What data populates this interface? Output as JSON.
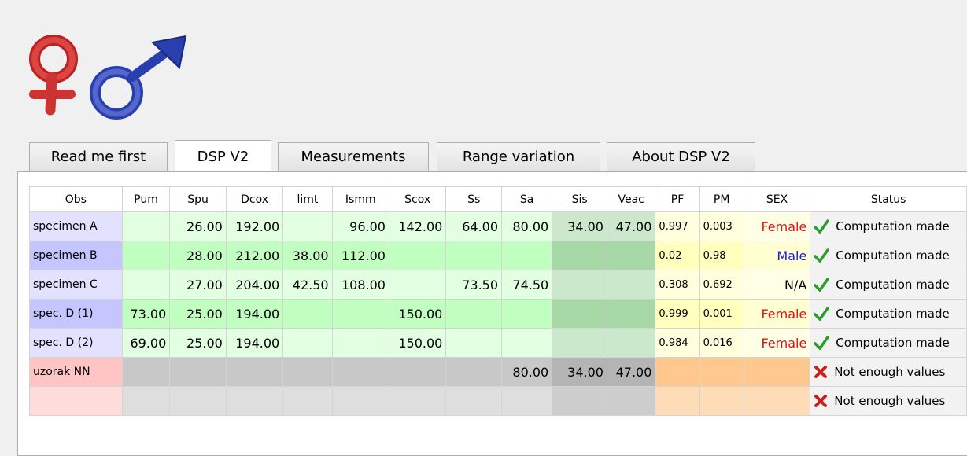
{
  "tabs": [
    "Read me first",
    "DSP V2",
    "Measurements",
    "Range variation",
    "About DSP V2"
  ],
  "table": {
    "header": [
      "Obs",
      "Pum",
      "Spu",
      "Dcox",
      "limt",
      "Ismm",
      "Scox",
      "Ss",
      "Sa",
      "Sis",
      "Veac",
      "PF",
      "PM",
      "SEX",
      "Status"
    ],
    "rows": [
      [
        "specimen A",
        null,
        "26.00",
        "192.00",
        null,
        "96.00",
        "142.00",
        "64.00",
        "80.00",
        "34.00",
        "47.00",
        "0.997",
        "0.003",
        "Female",
        "Computation made"
      ],
      [
        "specimen B",
        null,
        "28.00",
        "212.00",
        "38.00",
        "112.00",
        null,
        null,
        null,
        null,
        null,
        "0.02",
        "0.98",
        "Male",
        "Computation made"
      ],
      [
        "specimen C",
        null,
        "27.00",
        "204.00",
        "42.50",
        "108.00",
        null,
        "73.50",
        "74.50",
        null,
        null,
        "0.308",
        "0.692",
        "N/A",
        "Computation made"
      ],
      [
        "spec. D (1)",
        "73.00",
        "25.00",
        "194.00",
        null,
        null,
        "150.00",
        null,
        null,
        null,
        null,
        "0.999",
        "0.001",
        "Female",
        "Computation made"
      ],
      [
        "spec. D (2)",
        "69.00",
        "25.00",
        "194.00",
        null,
        null,
        "150.00",
        null,
        null,
        null,
        null,
        "0.984",
        "0.016",
        "Female",
        "Computation made"
      ],
      [
        "uzorak NN",
        null,
        null,
        null,
        null,
        null,
        null,
        null,
        "80.00",
        "34.00",
        "47.00",
        null,
        null,
        null,
        "Not enough values"
      ],
      [
        null,
        null,
        null,
        null,
        null,
        null,
        null,
        null,
        null,
        null,
        null,
        null,
        null,
        null,
        "Not enough values"
      ]
    ]
  }
}
